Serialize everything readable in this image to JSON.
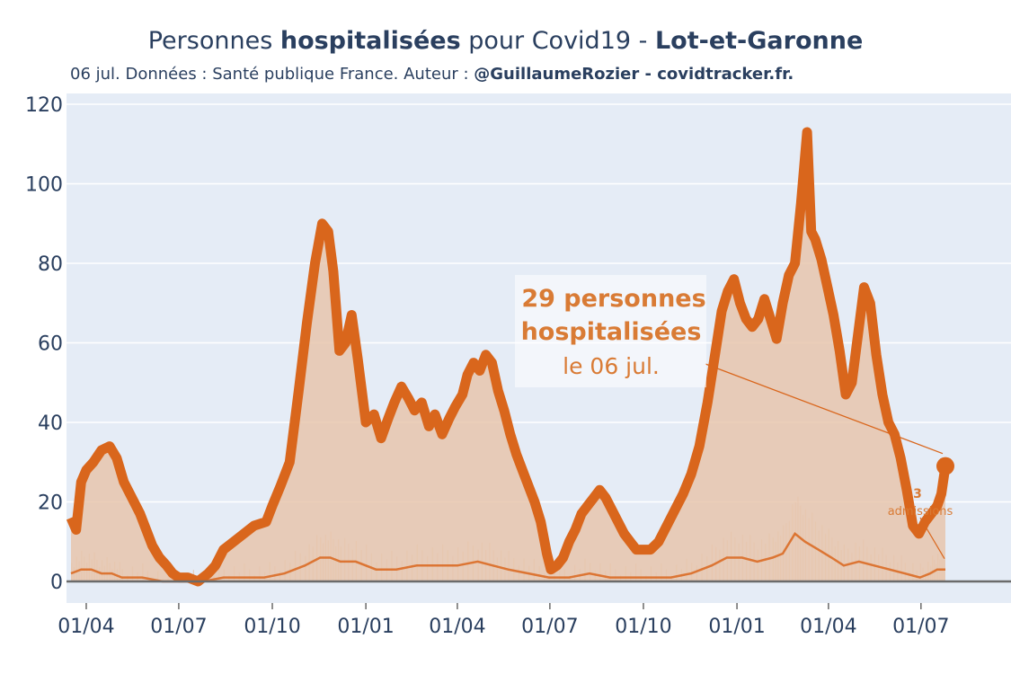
{
  "header": {
    "title_pre": "Personnes ",
    "title_bold": "hospitalisées",
    "title_mid": " pour Covid19 - ",
    "title_dept": "Lot-et-Garonne",
    "subtitle_pre": "06 jul. Données : Santé publique France. Auteur : ",
    "subtitle_bold": "@GuillaumeRozier - covidtracker.fr."
  },
  "colors": {
    "line": "#d9661c",
    "fill": "#e8c6ad",
    "bars": "#e6b38c",
    "plot_bg": "#e5ecf6",
    "annotation_text": "#d97b35"
  },
  "chart_data": {
    "type": "area",
    "title": "Personnes hospitalisées pour Covid19 - Lot-et-Garonne",
    "ylim": [
      -6,
      122
    ],
    "yticks": [
      0,
      20,
      40,
      60,
      80,
      100,
      120
    ],
    "xticks": [
      {
        "label": "01/04",
        "day": 15
      },
      {
        "label": "01/07",
        "day": 106
      },
      {
        "label": "01/10",
        "day": 198
      },
      {
        "label": "01/01",
        "day": 290
      },
      {
        "label": "01/04",
        "day": 380
      },
      {
        "label": "01/07",
        "day": 471
      },
      {
        "label": "01/10",
        "day": 563
      },
      {
        "label": "01/01",
        "day": 655
      },
      {
        "label": "01/04",
        "day": 745
      },
      {
        "label": "01/07",
        "day": 836
      }
    ],
    "xlim": [
      0,
      893
    ],
    "series": [
      {
        "name": "Personnes hospitalisées",
        "points": [
          [
            0,
            16
          ],
          [
            5,
            13
          ],
          [
            10,
            25
          ],
          [
            15,
            28
          ],
          [
            22,
            30
          ],
          [
            30,
            33
          ],
          [
            38,
            34
          ],
          [
            45,
            31
          ],
          [
            52,
            25
          ],
          [
            60,
            21
          ],
          [
            68,
            17
          ],
          [
            74,
            13
          ],
          [
            80,
            9
          ],
          [
            87,
            6
          ],
          [
            94,
            4
          ],
          [
            100,
            2
          ],
          [
            106,
            1
          ],
          [
            115,
            1
          ],
          [
            125,
            0
          ],
          [
            135,
            2
          ],
          [
            142,
            4
          ],
          [
            150,
            8
          ],
          [
            160,
            10
          ],
          [
            170,
            12
          ],
          [
            180,
            14
          ],
          [
            192,
            15
          ],
          [
            198,
            19
          ],
          [
            206,
            24
          ],
          [
            215,
            30
          ],
          [
            224,
            48
          ],
          [
            232,
            65
          ],
          [
            240,
            80
          ],
          [
            247,
            90
          ],
          [
            253,
            88
          ],
          [
            258,
            78
          ],
          [
            264,
            58
          ],
          [
            270,
            60
          ],
          [
            276,
            67
          ],
          [
            282,
            56
          ],
          [
            290,
            40
          ],
          [
            298,
            42
          ],
          [
            305,
            36
          ],
          [
            312,
            41
          ],
          [
            318,
            45
          ],
          [
            325,
            49
          ],
          [
            332,
            46
          ],
          [
            338,
            43
          ],
          [
            345,
            45
          ],
          [
            352,
            39
          ],
          [
            358,
            42
          ],
          [
            365,
            37
          ],
          [
            372,
            41
          ],
          [
            378,
            44
          ],
          [
            385,
            47
          ],
          [
            390,
            52
          ],
          [
            396,
            55
          ],
          [
            402,
            53
          ],
          [
            408,
            57
          ],
          [
            414,
            55
          ],
          [
            420,
            48
          ],
          [
            426,
            43
          ],
          [
            432,
            37
          ],
          [
            438,
            32
          ],
          [
            444,
            28
          ],
          [
            450,
            24
          ],
          [
            456,
            20
          ],
          [
            462,
            15
          ],
          [
            468,
            7
          ],
          [
            472,
            3
          ],
          [
            478,
            4
          ],
          [
            484,
            6
          ],
          [
            490,
            10
          ],
          [
            496,
            13
          ],
          [
            502,
            17
          ],
          [
            508,
            19
          ],
          [
            514,
            21
          ],
          [
            520,
            23
          ],
          [
            526,
            21
          ],
          [
            532,
            18
          ],
          [
            538,
            15
          ],
          [
            544,
            12
          ],
          [
            550,
            10
          ],
          [
            556,
            8
          ],
          [
            563,
            8
          ],
          [
            570,
            8
          ],
          [
            578,
            10
          ],
          [
            586,
            14
          ],
          [
            594,
            18
          ],
          [
            602,
            22
          ],
          [
            610,
            27
          ],
          [
            618,
            34
          ],
          [
            626,
            45
          ],
          [
            634,
            58
          ],
          [
            640,
            68
          ],
          [
            646,
            73
          ],
          [
            652,
            76
          ],
          [
            658,
            70
          ],
          [
            664,
            66
          ],
          [
            670,
            64
          ],
          [
            676,
            66
          ],
          [
            682,
            71
          ],
          [
            688,
            66
          ],
          [
            694,
            61
          ],
          [
            700,
            70
          ],
          [
            706,
            77
          ],
          [
            712,
            80
          ],
          [
            718,
            95
          ],
          [
            724,
            113
          ],
          [
            728,
            88
          ],
          [
            732,
            86
          ],
          [
            738,
            81
          ],
          [
            744,
            74
          ],
          [
            750,
            67
          ],
          [
            756,
            58
          ],
          [
            762,
            47
          ],
          [
            768,
            50
          ],
          [
            774,
            62
          ],
          [
            780,
            74
          ],
          [
            786,
            70
          ],
          [
            792,
            57
          ],
          [
            798,
            47
          ],
          [
            804,
            40
          ],
          [
            810,
            37
          ],
          [
            816,
            31
          ],
          [
            822,
            23
          ],
          [
            828,
            14
          ],
          [
            834,
            12
          ],
          [
            840,
            15
          ],
          [
            846,
            17
          ],
          [
            852,
            19
          ],
          [
            856,
            22
          ],
          [
            860,
            29
          ]
        ]
      },
      {
        "name": "admissions",
        "points": [
          [
            0,
            2
          ],
          [
            10,
            3
          ],
          [
            20,
            3
          ],
          [
            30,
            2
          ],
          [
            40,
            2
          ],
          [
            50,
            1
          ],
          [
            70,
            1
          ],
          [
            90,
            0
          ],
          [
            110,
            0
          ],
          [
            130,
            0
          ],
          [
            150,
            1
          ],
          [
            170,
            1
          ],
          [
            190,
            1
          ],
          [
            210,
            2
          ],
          [
            230,
            4
          ],
          [
            245,
            6
          ],
          [
            255,
            6
          ],
          [
            265,
            5
          ],
          [
            280,
            5
          ],
          [
            300,
            3
          ],
          [
            320,
            3
          ],
          [
            340,
            4
          ],
          [
            360,
            4
          ],
          [
            380,
            4
          ],
          [
            400,
            5
          ],
          [
            415,
            4
          ],
          [
            430,
            3
          ],
          [
            450,
            2
          ],
          [
            470,
            1
          ],
          [
            490,
            1
          ],
          [
            510,
            2
          ],
          [
            530,
            1
          ],
          [
            550,
            1
          ],
          [
            570,
            1
          ],
          [
            590,
            1
          ],
          [
            610,
            2
          ],
          [
            630,
            4
          ],
          [
            645,
            6
          ],
          [
            660,
            6
          ],
          [
            675,
            5
          ],
          [
            690,
            6
          ],
          [
            700,
            7
          ],
          [
            712,
            12
          ],
          [
            722,
            10
          ],
          [
            735,
            8
          ],
          [
            748,
            6
          ],
          [
            760,
            4
          ],
          [
            775,
            5
          ],
          [
            790,
            4
          ],
          [
            805,
            3
          ],
          [
            820,
            2
          ],
          [
            835,
            1
          ],
          [
            845,
            2
          ],
          [
            852,
            3
          ],
          [
            860,
            3
          ]
        ]
      }
    ],
    "annotations": {
      "main_value": "29 personnes",
      "main_label": "hospitalisées",
      "main_date": "le 06 jul.",
      "small_value": "3",
      "small_label": "admissions"
    }
  }
}
